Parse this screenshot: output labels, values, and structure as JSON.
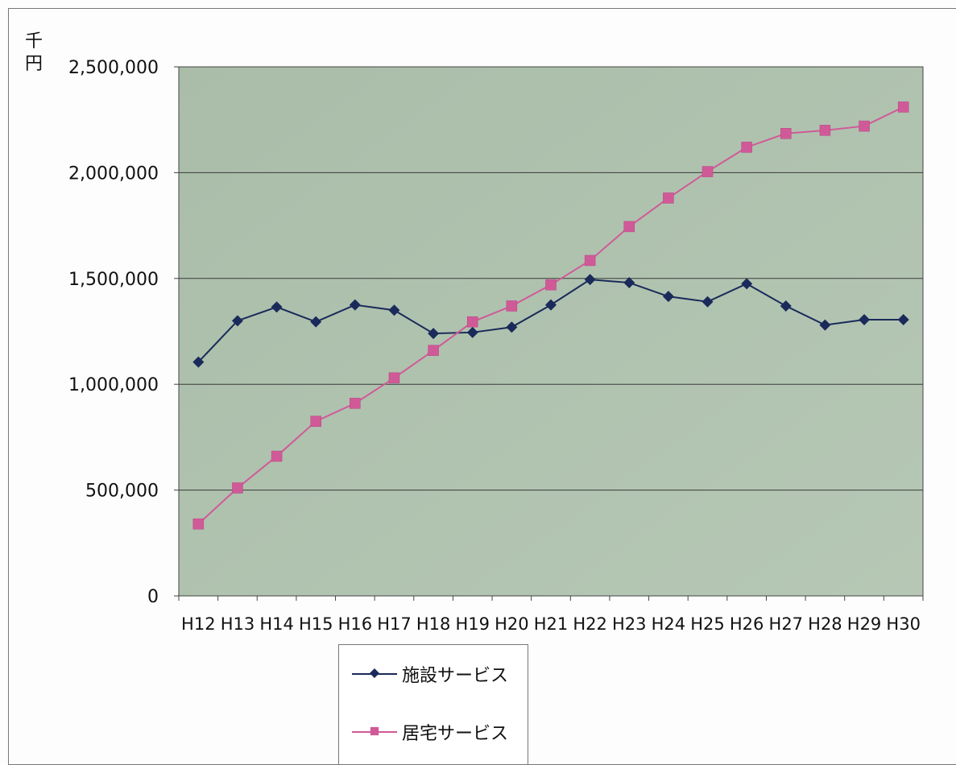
{
  "chart_data": {
    "type": "line",
    "ylabel": "千円",
    "ylim": [
      0,
      2500000
    ],
    "yticks": [
      0,
      500000,
      1000000,
      1500000,
      2000000,
      2500000
    ],
    "ytick_labels": [
      "0",
      "500,000",
      "1,000,000",
      "1,500,000",
      "2,000,000",
      "2,500,000"
    ],
    "categories": [
      "H12",
      "H13",
      "H14",
      "H15",
      "H16",
      "H17",
      "H18",
      "H19",
      "H20",
      "H21",
      "H22",
      "H23",
      "H24",
      "H25",
      "H26",
      "H27",
      "H28",
      "H29",
      "H30"
    ],
    "grid": true,
    "legend_position": "bottom",
    "series": [
      {
        "name": "施設サービス",
        "color": "#1a2a5a",
        "marker": "diamond",
        "values": [
          1105000,
          1300000,
          1365000,
          1295000,
          1375000,
          1350000,
          1240000,
          1245000,
          1270000,
          1375000,
          1495000,
          1480000,
          1415000,
          1390000,
          1475000,
          1370000,
          1280000,
          1305000,
          1305000
        ]
      },
      {
        "name": "居宅サービス",
        "color": "#d05a98",
        "marker": "square",
        "values": [
          340000,
          510000,
          660000,
          825000,
          910000,
          1030000,
          1160000,
          1295000,
          1370000,
          1470000,
          1585000,
          1745000,
          1880000,
          2005000,
          2120000,
          2185000,
          2200000,
          2220000,
          2310000
        ]
      }
    ]
  }
}
